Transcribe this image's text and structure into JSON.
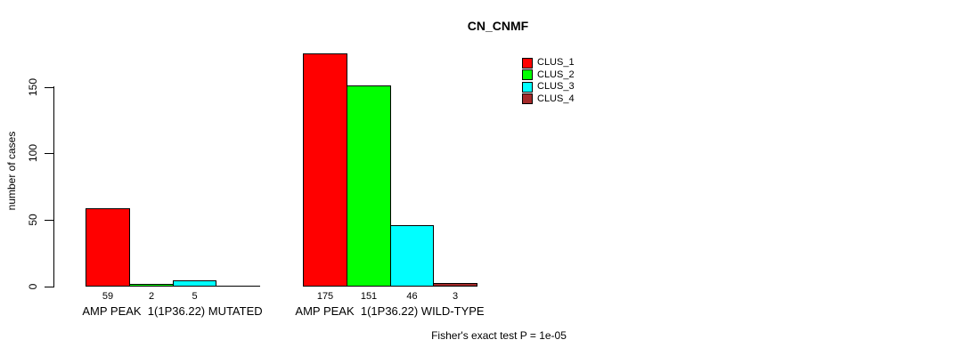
{
  "chart_data": {
    "type": "bar",
    "title": "CN_CNMF",
    "ylabel": "number of cases",
    "ylim": [
      0,
      175
    ],
    "yticks": [
      0,
      50,
      100,
      150
    ],
    "grid": false,
    "legend_position": "top-right",
    "series": [
      {
        "name": "CLUS_1",
        "color": "#FF0000"
      },
      {
        "name": "CLUS_2",
        "color": "#00FF00"
      },
      {
        "name": "CLUS_3",
        "color": "#00FFFF"
      },
      {
        "name": "CLUS_4",
        "color": "#A52A2A"
      }
    ],
    "groups": [
      {
        "label": "AMP PEAK  1(1P36.22) MUTATED",
        "values": [
          59,
          2,
          5,
          0
        ],
        "bar_labels": [
          "59",
          "2",
          "5",
          ""
        ]
      },
      {
        "label": "AMP PEAK  1(1P36.22) WILD-TYPE",
        "values": [
          175,
          151,
          46,
          3
        ],
        "bar_labels": [
          "175",
          "151",
          "46",
          "3"
        ]
      }
    ],
    "annotation": "Fisher's exact test P = 1e-05"
  }
}
